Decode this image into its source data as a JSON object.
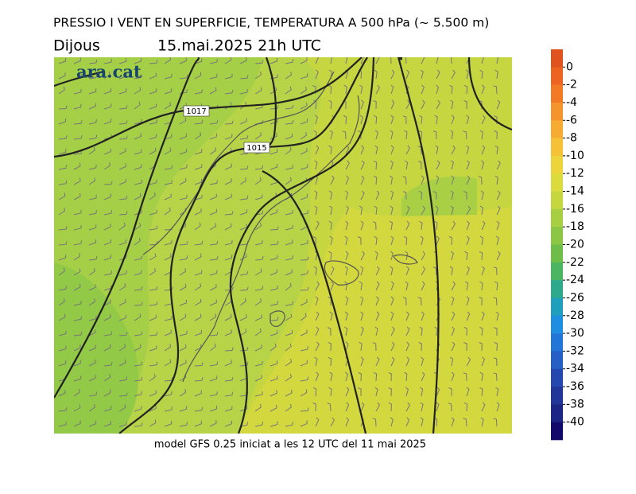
{
  "header": {
    "title": "PRESSIO I VENT EN SUPERFICIE, TEMPERATURA A 500 hPa (~ 5.500 m)",
    "day": "Dijous",
    "datetime": "15.mai.2025 21h UTC"
  },
  "logo": "ara.cat",
  "map": {
    "contour_labels": [
      "1017",
      "1015"
    ]
  },
  "colorbar": {
    "ticks": [
      0,
      -2,
      -4,
      -6,
      -8,
      -10,
      -12,
      -14,
      -16,
      -18,
      -20,
      -22,
      -24,
      -26,
      -28,
      -30,
      -32,
      -34,
      -36,
      -38,
      -40
    ],
    "colors": [
      "#e0531f",
      "#ec6420",
      "#f37a24",
      "#f5932d",
      "#f6ab31",
      "#f5c237",
      "#eed43b",
      "#dcdb3d",
      "#c4d73f",
      "#a8cf42",
      "#8bc645",
      "#6cbe49",
      "#4cb562",
      "#2fa98c",
      "#1f9fbb",
      "#1e8fe0",
      "#2176d8",
      "#255fc6",
      "#2548ae",
      "#213699",
      "#1a2584",
      "#120a6a"
    ]
  },
  "footer": "model GFS 0.25 iniciat a les 12 UTC del 11 mai 2025"
}
